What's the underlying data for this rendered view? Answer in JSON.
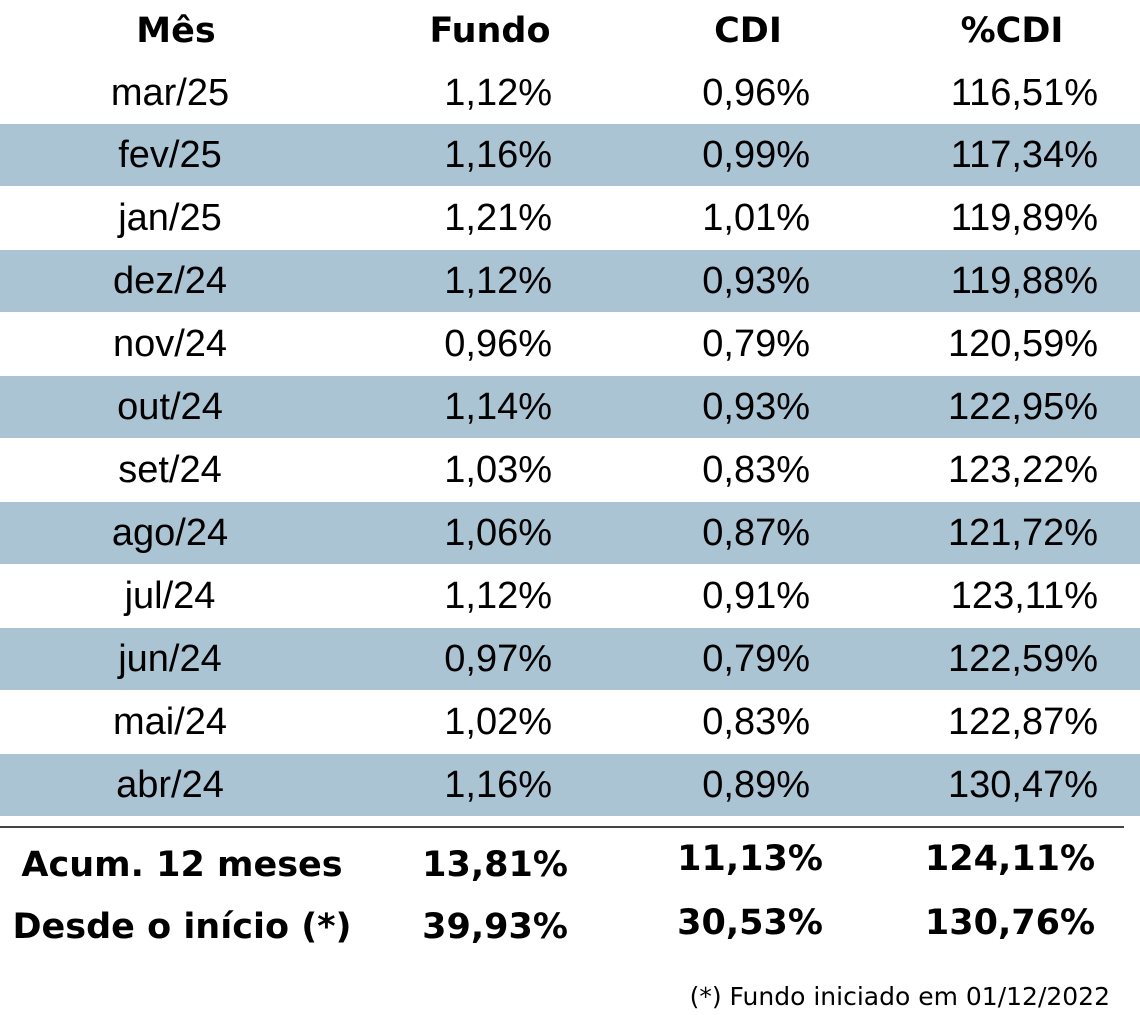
{
  "table": {
    "headers": [
      "Mês",
      "Fundo",
      "CDI",
      "%CDI"
    ],
    "rows": [
      [
        "mar/25",
        "1,12%",
        "0,96%",
        "116,51%"
      ],
      [
        "fev/25",
        "1,16%",
        "0,99%",
        "117,34%"
      ],
      [
        "jan/25",
        "1,21%",
        "1,01%",
        "119,89%"
      ],
      [
        "dez/24",
        "1,12%",
        "0,93%",
        "119,88%"
      ],
      [
        "nov/24",
        "0,96%",
        "0,79%",
        "120,59%"
      ],
      [
        "out/24",
        "1,14%",
        "0,93%",
        "122,95%"
      ],
      [
        "set/24",
        "1,03%",
        "0,83%",
        "123,22%"
      ],
      [
        "ago/24",
        "1,06%",
        "0,87%",
        "121,72%"
      ],
      [
        "jul/24",
        "1,12%",
        "0,91%",
        "123,11%"
      ],
      [
        "jun/24",
        "0,97%",
        "0,79%",
        "122,59%"
      ],
      [
        "mai/24",
        "1,02%",
        "0,83%",
        "122,87%"
      ],
      [
        "abr/24",
        "1,16%",
        "0,89%",
        "130,47%"
      ]
    ],
    "summary": [
      [
        "Acum. 12 meses",
        "13,81%",
        "11,13%",
        "124,11%"
      ],
      [
        "Desde o início (*)",
        "39,93%",
        "30,53%",
        "130,76%"
      ]
    ]
  },
  "footnote": "(*) Fundo iniciado em 01/12/2022",
  "colors": {
    "stripe": "#abc4d4",
    "background": "#ffffff",
    "text": "#000000"
  }
}
